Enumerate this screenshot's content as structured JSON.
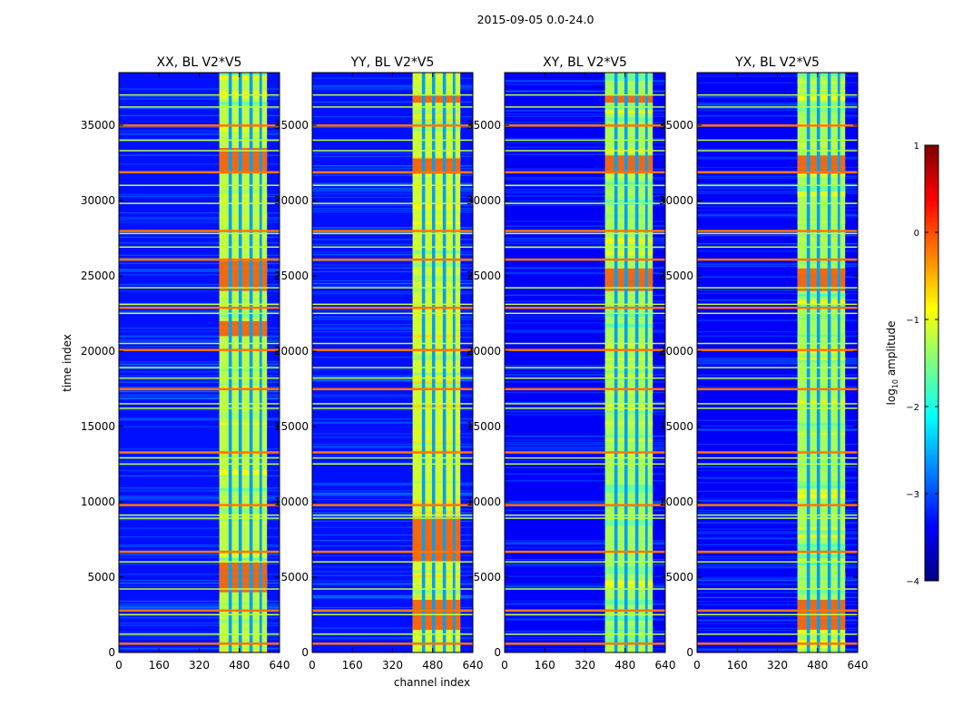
{
  "figure_title": "2015-09-05 0.0-24.0",
  "chart_data": [
    {
      "type": "heatmap",
      "title": "XX, BL V2*V5",
      "xlabel": "channel index",
      "ylabel": "time index",
      "xlim": [
        0,
        640
      ],
      "ylim": [
        0,
        38500
      ],
      "xticks": [
        0,
        160,
        320,
        480,
        640
      ],
      "yticks": [
        0,
        5000,
        10000,
        15000,
        20000,
        25000,
        30000,
        35000
      ],
      "background_log10_amplitude": -3.3,
      "strong_band_channels": [
        400,
        590
      ],
      "band_gaps_channels": [
        437,
        450,
        477,
        490,
        520,
        533,
        560,
        570
      ],
      "band_log10_amplitude": -1.2,
      "hot_time_ranges": [
        [
          31800,
          33500
        ],
        [
          24000,
          26000
        ],
        [
          21000,
          22000
        ],
        [
          4000,
          6000
        ]
      ]
    },
    {
      "type": "heatmap",
      "title": "YY, BL V2*V5",
      "xlabel": "channel index",
      "ylabel": "time index",
      "xlim": [
        0,
        640
      ],
      "ylim": [
        0,
        38500
      ],
      "xticks": [
        0,
        160,
        320,
        480,
        640
      ],
      "yticks": [
        0,
        5000,
        10000,
        15000,
        20000,
        25000,
        30000,
        35000
      ],
      "background_log10_amplitude": -3.3,
      "strong_band_channels": [
        400,
        590
      ],
      "band_gaps_channels": [
        437,
        450,
        477,
        490,
        520,
        533,
        560,
        570
      ],
      "band_log10_amplitude": -1.1,
      "hot_time_ranges": [
        [
          31800,
          32800
        ],
        [
          36500,
          37000
        ],
        [
          6000,
          9000
        ],
        [
          1500,
          3500
        ]
      ]
    },
    {
      "type": "heatmap",
      "title": "XY, BL V2*V5",
      "xlabel": "channel index",
      "ylabel": "time index",
      "xlim": [
        0,
        640
      ],
      "ylim": [
        0,
        38500
      ],
      "xticks": [
        0,
        160,
        320,
        480,
        640
      ],
      "yticks": [
        0,
        5000,
        10000,
        15000,
        20000,
        25000,
        30000,
        35000
      ],
      "background_log10_amplitude": -3.4,
      "strong_band_channels": [
        400,
        590
      ],
      "band_gaps_channels": [
        437,
        450,
        477,
        490,
        520,
        533,
        560,
        570
      ],
      "band_log10_amplitude": -1.3,
      "hot_time_ranges": [
        [
          31800,
          33000
        ],
        [
          36500,
          37000
        ],
        [
          24000,
          25500
        ]
      ]
    },
    {
      "type": "heatmap",
      "title": "YX, BL V2*V5",
      "xlabel": "channel index",
      "ylabel": "time index",
      "xlim": [
        0,
        640
      ],
      "ylim": [
        0,
        38500
      ],
      "xticks": [
        0,
        160,
        320,
        480,
        640
      ],
      "yticks": [
        0,
        5000,
        10000,
        15000,
        20000,
        25000,
        30000,
        35000
      ],
      "background_log10_amplitude": -3.4,
      "strong_band_channels": [
        400,
        590
      ],
      "band_gaps_channels": [
        437,
        450,
        477,
        490,
        520,
        533,
        560,
        570
      ],
      "band_log10_amplitude": -1.3,
      "hot_time_ranges": [
        [
          31800,
          33000
        ],
        [
          24000,
          25500
        ],
        [
          1500,
          3500
        ]
      ]
    }
  ],
  "rfi_time_lines": [
    600,
    1200,
    2500,
    2800,
    4200,
    6000,
    6700,
    8900,
    9100,
    9800,
    12500,
    12900,
    13300,
    16200,
    16500,
    17500,
    18200,
    18900,
    20100,
    20500,
    22500,
    22900,
    23100,
    24200,
    26100,
    26900,
    27800,
    28000,
    29800,
    31000,
    31900,
    33300,
    34000,
    35000,
    36200,
    37000
  ],
  "colorbar": {
    "label": "log10 amplitude",
    "label_main": "log",
    "label_sub": "10",
    "label_rest": " amplitude",
    "range": [
      -4,
      1
    ],
    "ticks": [
      1,
      0,
      -1,
      -2,
      -3,
      -4
    ],
    "tick_labels": [
      "1",
      "0",
      "−1",
      "−2",
      "−3",
      "−4"
    ],
    "colormap": "jet",
    "colors": [
      "#00007f",
      "#0000ff",
      "#007fff",
      "#00ffff",
      "#7fff7f",
      "#ffff00",
      "#ff7f00",
      "#ff0000",
      "#7f0000"
    ]
  }
}
